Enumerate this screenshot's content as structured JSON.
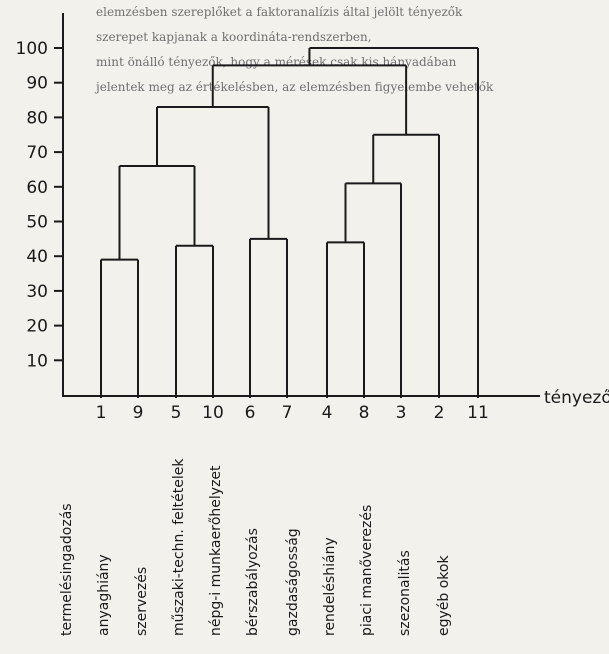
{
  "background_text": [
    "elemzésben szereplőket a faktoranalízis által jelölt tényezők",
    "szerepet kapjanak a koordináta-rendszerben,",
    "mint önálló tényezők, hogy a mérések csak kis hányadában",
    "jelentek meg az értékelésben, az elemzésben figyelembe vehetők"
  ],
  "chart_data": {
    "type": "dendrogram",
    "xlabel": "tényezők",
    "ylim": [
      0,
      100
    ],
    "yticks": [
      10,
      20,
      30,
      40,
      50,
      60,
      70,
      80,
      90,
      100
    ],
    "leaves": [
      {
        "id": "1",
        "label": "termelésingadozás"
      },
      {
        "id": "9",
        "label": "anyaghiány"
      },
      {
        "id": "5",
        "label": "szervezés"
      },
      {
        "id": "10",
        "label": "műszaki-techn. feltételek"
      },
      {
        "id": "6",
        "label": "népg-i munkaerőhelyzet"
      },
      {
        "id": "7",
        "label": "bérszabályozás"
      },
      {
        "id": "4",
        "label": "gazdaságosság"
      },
      {
        "id": "8",
        "label": "rendeléshiány"
      },
      {
        "id": "3",
        "label": "piaci manőverezés"
      },
      {
        "id": "2",
        "label": "szezonalitás"
      },
      {
        "id": "11",
        "label": "egyéb okok"
      }
    ],
    "merges": [
      {
        "join": [
          0,
          1
        ],
        "height": 39
      },
      {
        "join": [
          2,
          3
        ],
        "height": 43
      },
      {
        "join": [
          4,
          5
        ],
        "height": 45
      },
      {
        "join": [
          6,
          7
        ],
        "height": 44
      },
      {
        "join": [
          0,
          1,
          2,
          3
        ],
        "height": 66
      },
      {
        "join": [
          6,
          7,
          8
        ],
        "height": 61
      },
      {
        "join": [
          6,
          7,
          8,
          9
        ],
        "height": 75
      },
      {
        "join": [
          0,
          1,
          2,
          3,
          4,
          5
        ],
        "height": 83
      },
      {
        "join": [
          0,
          1,
          2,
          3,
          4,
          5,
          6,
          7,
          8,
          9
        ],
        "height": 95
      },
      {
        "join": [
          0,
          1,
          2,
          3,
          4,
          5,
          6,
          7,
          8,
          9,
          10
        ],
        "height": 100
      }
    ]
  }
}
